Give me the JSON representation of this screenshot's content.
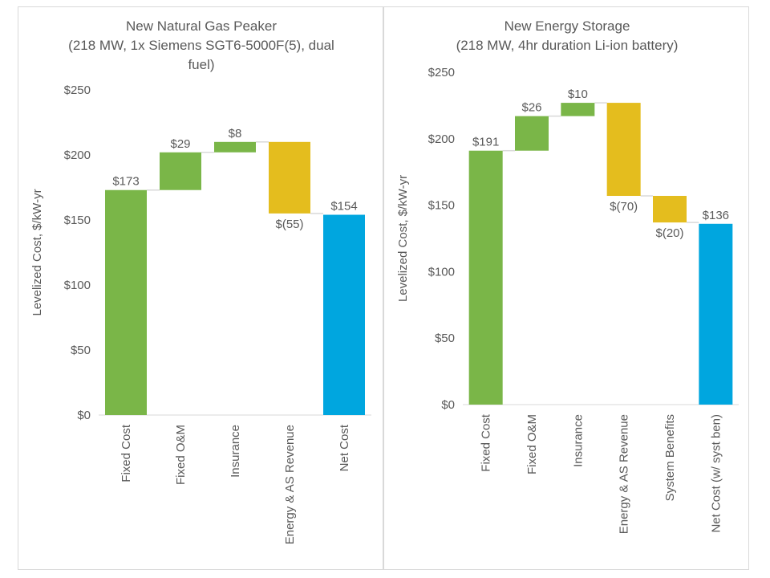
{
  "colors": {
    "cost": "#7ab648",
    "revenue": "#e4bd1e",
    "net": "#00a6df",
    "connector": "#d9d9d9",
    "text": "#595959",
    "axis": "#d9d9d9"
  },
  "chart_data": [
    {
      "type": "bar",
      "subtype": "waterfall",
      "title_lines": [
        "New Natural Gas Peaker",
        "(218 MW, 1x Siemens SGT6-5000F(5), dual",
        "fuel)"
      ],
      "ylabel": "Levelized Cost, $/kW-yr",
      "xlabel": "",
      "ylim": [
        0,
        250
      ],
      "yticks": [
        0,
        50,
        100,
        150,
        200,
        250
      ],
      "ytick_labels": [
        "$0",
        "$50",
        "$100",
        "$150",
        "$200",
        "$250"
      ],
      "grid": false,
      "legend": "none",
      "categories": [
        "Fixed Cost",
        "Fixed O&M",
        "Insurance",
        "Energy & AS Revenue",
        "Net Cost"
      ],
      "values": [
        173,
        29,
        8,
        -55,
        154
      ],
      "value_labels": [
        "$173",
        "$29",
        "$8",
        "$(55)",
        "$154"
      ],
      "bar_kinds": [
        "cost",
        "cost",
        "cost",
        "revenue",
        "net"
      ]
    },
    {
      "type": "bar",
      "subtype": "waterfall",
      "title_lines": [
        "New Energy Storage",
        "(218 MW, 4hr duration Li-ion battery)"
      ],
      "ylabel": "Levelized Cost, $/kW-yr",
      "xlabel": "",
      "ylim": [
        0,
        250
      ],
      "yticks": [
        0,
        50,
        100,
        150,
        200,
        250
      ],
      "ytick_labels": [
        "$0",
        "$50",
        "$100",
        "$150",
        "$200",
        "$250"
      ],
      "grid": false,
      "legend": "none",
      "categories": [
        "Fixed Cost",
        "Fixed O&M",
        "Insurance",
        "Energy & AS Revenue",
        "System Benefits",
        "Net Cost (w/ syst ben)"
      ],
      "values": [
        191,
        26,
        10,
        -70,
        -20,
        136
      ],
      "value_labels": [
        "$191",
        "$26",
        "$10",
        "$(70)",
        "$(20)",
        "$136"
      ],
      "bar_kinds": [
        "cost",
        "cost",
        "cost",
        "revenue",
        "revenue",
        "net"
      ]
    }
  ]
}
